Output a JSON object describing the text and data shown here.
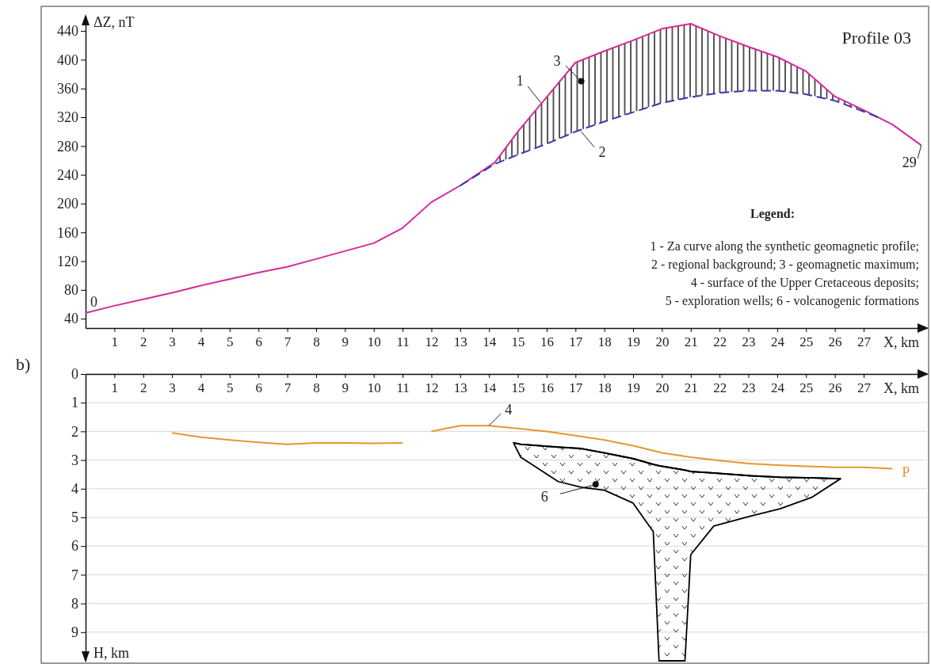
{
  "chart_data": [
    {
      "type": "line",
      "title": "Profile 03",
      "xlabel": "X, km",
      "ylabel": "ΔZ, nT",
      "xlim": [
        0,
        29.2
      ],
      "ylim": [
        27,
        461
      ],
      "xticks": [
        1,
        2,
        3,
        4,
        5,
        6,
        7,
        8,
        9,
        10,
        11,
        12,
        13,
        14,
        15,
        16,
        17,
        18,
        19,
        20,
        21,
        22,
        23,
        24,
        25,
        26,
        27
      ],
      "yticks": [
        40,
        80,
        120,
        160,
        200,
        240,
        280,
        320,
        360,
        400,
        440
      ],
      "grid": false,
      "series": [
        {
          "type": "line",
          "color": "#d6299a",
          "line_style": "solid",
          "x": [
            0,
            1,
            2,
            3,
            4,
            5,
            6,
            7,
            8,
            9,
            10,
            11,
            12,
            13,
            14.2,
            15,
            16,
            17,
            18,
            19,
            20,
            21,
            22,
            23,
            24,
            25,
            26,
            27,
            28,
            29
          ],
          "values": [
            48,
            58,
            67,
            76,
            86,
            95,
            104,
            112,
            123,
            134,
            145,
            166,
            202,
            225,
            257,
            300,
            348,
            396,
            412,
            427,
            443,
            450,
            433,
            418,
            404,
            384,
            349,
            330,
            310,
            281
          ],
          "lower": [
            null,
            null,
            null,
            null,
            null,
            null,
            null,
            null,
            null,
            null,
            null,
            null,
            null,
            null,
            255,
            268,
            283,
            300,
            314,
            327,
            340,
            348,
            354,
            357,
            357,
            352,
            343,
            328,
            null,
            null
          ],
          "upper": [
            null,
            null,
            null,
            null,
            null,
            null,
            null,
            null,
            null,
            null,
            null,
            null,
            null,
            null,
            257,
            300,
            348,
            396,
            412,
            427,
            443,
            450,
            433,
            418,
            404,
            384,
            349,
            330,
            null,
            null
          ]
        },
        {
          "type": "line",
          "color": "#3a3aa8",
          "line_style": "dashed",
          "x": [
            13,
            14.2,
            15,
            16,
            17,
            18,
            19,
            20,
            21,
            22,
            23,
            24,
            25,
            26,
            27,
            27.5
          ],
          "values": [
            225,
            255,
            268,
            283,
            300,
            314,
            327,
            340,
            348,
            354,
            357,
            357,
            352,
            343,
            328,
            320
          ]
        }
      ],
      "annotations": [
        {
          "text": "0",
          "x": 0,
          "y": 48
        },
        {
          "text": "29",
          "x": 29,
          "y": 281
        },
        {
          "text": "1",
          "x": 15.8,
          "y": 340
        },
        {
          "text": "2",
          "x": 17.2,
          "y": 300
        },
        {
          "text": "3",
          "x": 17.2,
          "y": 370
        },
        "Legend:",
        "1 - Za curve along the synthetic geomagnetic profile;",
        "2 - regional background; 3 - geomagnetic maximum;",
        "4 - surface of the Upper Cretaceous deposits;",
        "5 - exploration wells; 6 - volcanogenic formations"
      ]
    },
    {
      "type": "line",
      "xlabel": "X, km",
      "ylabel": "H, km",
      "xlim": [
        0,
        29.2
      ],
      "ylim": [
        10,
        0
      ],
      "xticks": [
        1,
        2,
        3,
        4,
        5,
        6,
        7,
        8,
        9,
        10,
        11,
        12,
        13,
        14,
        15,
        16,
        17,
        18,
        19,
        20,
        21,
        22,
        23,
        24,
        25,
        26,
        27
      ],
      "yticks": [
        0,
        1,
        2,
        3,
        4,
        5,
        6,
        7,
        8,
        9
      ],
      "grid": "y",
      "series": [
        {
          "type": "line",
          "color": "#000000",
          "line_style": "solid",
          "x": [
            14.85,
            15.1,
            16.4,
            17.2,
            18,
            19,
            19.7,
            19.9,
            20.8,
            21,
            21.8,
            23.1,
            24.1,
            25.2,
            26.2
          ],
          "values": [
            2.4,
            2.45,
            2.55,
            2.6,
            2.75,
            2.95,
            3.15,
            3.2,
            3.35,
            3.4,
            3.45,
            3.55,
            3.6,
            3.62,
            3.65
          ],
          "upper": [
            2.4,
            2.45,
            2.55,
            2.6,
            2.75,
            2.95,
            3.15,
            3.2,
            3.35,
            3.4,
            3.45,
            3.55,
            3.6,
            3.62,
            3.65
          ],
          "lower": [
            2.4,
            2.9,
            3.75,
            3.95,
            4.05,
            4.5,
            5.5,
            10,
            10,
            6.3,
            5.3,
            4.95,
            4.7,
            4.3,
            3.65
          ]
        },
        {
          "type": "line",
          "color": "#e8962e",
          "line_style": "solid",
          "x": [
            3,
            4,
            5,
            6,
            7,
            8,
            9,
            10,
            11,
            11.5,
            12,
            13,
            14,
            15,
            16,
            17,
            18,
            19,
            20,
            21,
            22,
            23,
            24,
            25,
            26,
            27,
            28
          ],
          "values": [
            2.05,
            2.2,
            2.3,
            2.38,
            2.45,
            2.4,
            2.4,
            2.42,
            2.4,
            null,
            2.0,
            1.8,
            1.8,
            1.9,
            2.0,
            2.15,
            2.3,
            2.5,
            2.75,
            2.9,
            3.02,
            3.12,
            3.18,
            3.22,
            3.25,
            3.25,
            3.3
          ]
        }
      ],
      "annotations": [
        {
          "text": "4",
          "x": 14,
          "y": 1.8
        },
        {
          "text": "6",
          "x": 17.7,
          "y": 3.85
        },
        {
          "text": "P",
          "x": 28,
          "y": 3.3
        },
        "b)"
      ]
    }
  ]
}
